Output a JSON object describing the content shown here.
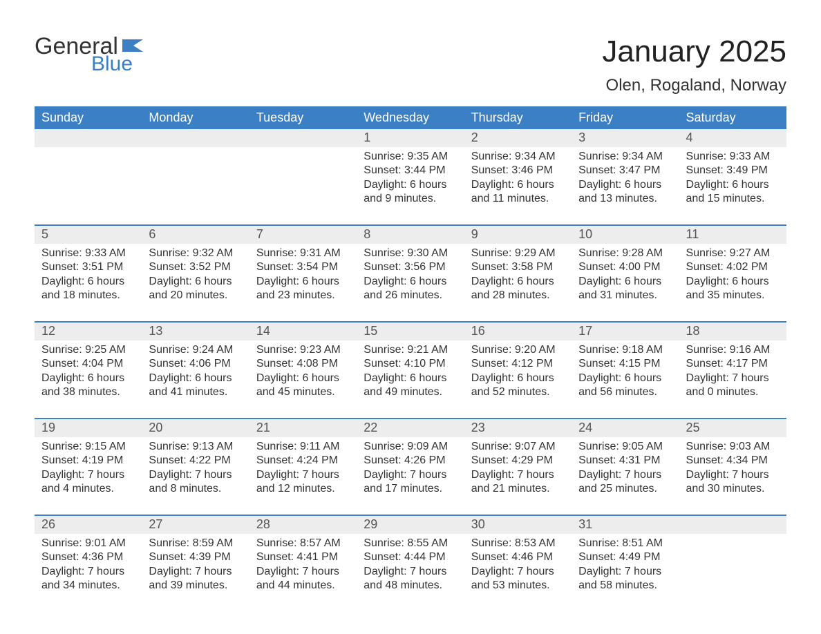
{
  "brand": {
    "word1": "General",
    "word2": "Blue",
    "flag_color": "#3b7fc4"
  },
  "title": "January 2025",
  "location": "Olen, Rogaland, Norway",
  "colors": {
    "header_bg": "#3b7fc4",
    "header_text": "#ffffff",
    "daynum_bg": "#ededed",
    "daynum_text": "#555555",
    "body_text": "#333333",
    "week_divider": "#3b7fc4",
    "page_bg": "#ffffff"
  },
  "day_headers": [
    "Sunday",
    "Monday",
    "Tuesday",
    "Wednesday",
    "Thursday",
    "Friday",
    "Saturday"
  ],
  "labels": {
    "sunrise": "Sunrise",
    "sunset": "Sunset",
    "daylight": "Daylight"
  },
  "weeks": [
    [
      {
        "blank": true
      },
      {
        "blank": true
      },
      {
        "blank": true
      },
      {
        "day": "1",
        "sunrise": "9:35 AM",
        "sunset": "3:44 PM",
        "daylight_line1": "6 hours",
        "daylight_line2": "and 9 minutes."
      },
      {
        "day": "2",
        "sunrise": "9:34 AM",
        "sunset": "3:46 PM",
        "daylight_line1": "6 hours",
        "daylight_line2": "and 11 minutes."
      },
      {
        "day": "3",
        "sunrise": "9:34 AM",
        "sunset": "3:47 PM",
        "daylight_line1": "6 hours",
        "daylight_line2": "and 13 minutes."
      },
      {
        "day": "4",
        "sunrise": "9:33 AM",
        "sunset": "3:49 PM",
        "daylight_line1": "6 hours",
        "daylight_line2": "and 15 minutes."
      }
    ],
    [
      {
        "day": "5",
        "sunrise": "9:33 AM",
        "sunset": "3:51 PM",
        "daylight_line1": "6 hours",
        "daylight_line2": "and 18 minutes."
      },
      {
        "day": "6",
        "sunrise": "9:32 AM",
        "sunset": "3:52 PM",
        "daylight_line1": "6 hours",
        "daylight_line2": "and 20 minutes."
      },
      {
        "day": "7",
        "sunrise": "9:31 AM",
        "sunset": "3:54 PM",
        "daylight_line1": "6 hours",
        "daylight_line2": "and 23 minutes."
      },
      {
        "day": "8",
        "sunrise": "9:30 AM",
        "sunset": "3:56 PM",
        "daylight_line1": "6 hours",
        "daylight_line2": "and 26 minutes."
      },
      {
        "day": "9",
        "sunrise": "9:29 AM",
        "sunset": "3:58 PM",
        "daylight_line1": "6 hours",
        "daylight_line2": "and 28 minutes."
      },
      {
        "day": "10",
        "sunrise": "9:28 AM",
        "sunset": "4:00 PM",
        "daylight_line1": "6 hours",
        "daylight_line2": "and 31 minutes."
      },
      {
        "day": "11",
        "sunrise": "9:27 AM",
        "sunset": "4:02 PM",
        "daylight_line1": "6 hours",
        "daylight_line2": "and 35 minutes."
      }
    ],
    [
      {
        "day": "12",
        "sunrise": "9:25 AM",
        "sunset": "4:04 PM",
        "daylight_line1": "6 hours",
        "daylight_line2": "and 38 minutes."
      },
      {
        "day": "13",
        "sunrise": "9:24 AM",
        "sunset": "4:06 PM",
        "daylight_line1": "6 hours",
        "daylight_line2": "and 41 minutes."
      },
      {
        "day": "14",
        "sunrise": "9:23 AM",
        "sunset": "4:08 PM",
        "daylight_line1": "6 hours",
        "daylight_line2": "and 45 minutes."
      },
      {
        "day": "15",
        "sunrise": "9:21 AM",
        "sunset": "4:10 PM",
        "daylight_line1": "6 hours",
        "daylight_line2": "and 49 minutes."
      },
      {
        "day": "16",
        "sunrise": "9:20 AM",
        "sunset": "4:12 PM",
        "daylight_line1": "6 hours",
        "daylight_line2": "and 52 minutes."
      },
      {
        "day": "17",
        "sunrise": "9:18 AM",
        "sunset": "4:15 PM",
        "daylight_line1": "6 hours",
        "daylight_line2": "and 56 minutes."
      },
      {
        "day": "18",
        "sunrise": "9:16 AM",
        "sunset": "4:17 PM",
        "daylight_line1": "7 hours",
        "daylight_line2": "and 0 minutes."
      }
    ],
    [
      {
        "day": "19",
        "sunrise": "9:15 AM",
        "sunset": "4:19 PM",
        "daylight_line1": "7 hours",
        "daylight_line2": "and 4 minutes."
      },
      {
        "day": "20",
        "sunrise": "9:13 AM",
        "sunset": "4:22 PM",
        "daylight_line1": "7 hours",
        "daylight_line2": "and 8 minutes."
      },
      {
        "day": "21",
        "sunrise": "9:11 AM",
        "sunset": "4:24 PM",
        "daylight_line1": "7 hours",
        "daylight_line2": "and 12 minutes."
      },
      {
        "day": "22",
        "sunrise": "9:09 AM",
        "sunset": "4:26 PM",
        "daylight_line1": "7 hours",
        "daylight_line2": "and 17 minutes."
      },
      {
        "day": "23",
        "sunrise": "9:07 AM",
        "sunset": "4:29 PM",
        "daylight_line1": "7 hours",
        "daylight_line2": "and 21 minutes."
      },
      {
        "day": "24",
        "sunrise": "9:05 AM",
        "sunset": "4:31 PM",
        "daylight_line1": "7 hours",
        "daylight_line2": "and 25 minutes."
      },
      {
        "day": "25",
        "sunrise": "9:03 AM",
        "sunset": "4:34 PM",
        "daylight_line1": "7 hours",
        "daylight_line2": "and 30 minutes."
      }
    ],
    [
      {
        "day": "26",
        "sunrise": "9:01 AM",
        "sunset": "4:36 PM",
        "daylight_line1": "7 hours",
        "daylight_line2": "and 34 minutes."
      },
      {
        "day": "27",
        "sunrise": "8:59 AM",
        "sunset": "4:39 PM",
        "daylight_line1": "7 hours",
        "daylight_line2": "and 39 minutes."
      },
      {
        "day": "28",
        "sunrise": "8:57 AM",
        "sunset": "4:41 PM",
        "daylight_line1": "7 hours",
        "daylight_line2": "and 44 minutes."
      },
      {
        "day": "29",
        "sunrise": "8:55 AM",
        "sunset": "4:44 PM",
        "daylight_line1": "7 hours",
        "daylight_line2": "and 48 minutes."
      },
      {
        "day": "30",
        "sunrise": "8:53 AM",
        "sunset": "4:46 PM",
        "daylight_line1": "7 hours",
        "daylight_line2": "and 53 minutes."
      },
      {
        "day": "31",
        "sunrise": "8:51 AM",
        "sunset": "4:49 PM",
        "daylight_line1": "7 hours",
        "daylight_line2": "and 58 minutes."
      },
      {
        "blank": true
      }
    ]
  ]
}
